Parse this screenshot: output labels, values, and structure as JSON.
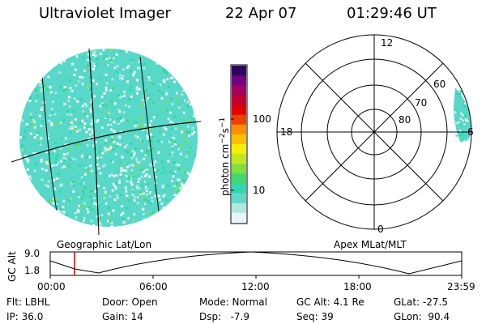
{
  "header": {
    "title": "Ultraviolet Imager",
    "date": "22 Apr 07",
    "time": "01:29:46 UT"
  },
  "colorbar": {
    "unit": "photon cm",
    "unit_exp1": "−2",
    "unit_s": "s",
    "unit_exp2": "−1",
    "ticks": [
      "100",
      "10"
    ],
    "colors": [
      "#e8f4f8",
      "#b0e8e0",
      "#60d8c8",
      "#30d8b0",
      "#40d870",
      "#80e040",
      "#c0e820",
      "#f0f000",
      "#f8c000",
      "#f89000",
      "#f04000",
      "#e00000",
      "#c00030",
      "#a00060",
      "#700080",
      "#300060"
    ]
  },
  "left_panel": {
    "label": "Geographic Lat/Lon"
  },
  "right_panel": {
    "label": "Apex MLat/MLT",
    "mlt_labels": [
      "12",
      "18",
      "6",
      "0"
    ],
    "lat_labels": [
      "60",
      "70",
      "80"
    ]
  },
  "altitude_plot": {
    "ylabel": "GC Alt",
    "yticks": [
      "9.0",
      "1.8"
    ],
    "xticks": [
      "00:00",
      "06:00",
      "12:00",
      "18:00",
      "23:59"
    ],
    "cursor_color": "#cc0000"
  },
  "info": {
    "filter": "Flt: LBHL",
    "ip": "IP: 36.0",
    "door": "Door: Open",
    "gain": "Gain: 14",
    "mode": "Mode: Normal",
    "dsp": "Dsp:   -7.9",
    "gc_alt": "GC Alt: 4.1 Re",
    "seq": "Seq: 39",
    "glat": "GLat: -27.5",
    "glon": "GLon:  90.4"
  }
}
